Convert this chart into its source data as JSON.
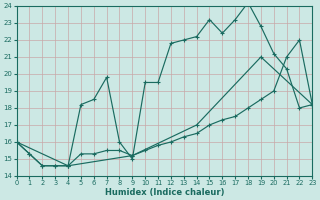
{
  "xlabel": "Humidex (Indice chaleur)",
  "bg_color": "#cce8e4",
  "grid_color": "#b8d8d4",
  "line_color": "#1a6b60",
  "xlim": [
    0,
    23
  ],
  "ylim": [
    14,
    24
  ],
  "xticks": [
    0,
    1,
    2,
    3,
    4,
    5,
    6,
    7,
    8,
    9,
    10,
    11,
    12,
    13,
    14,
    15,
    16,
    17,
    18,
    19,
    20,
    21,
    22,
    23
  ],
  "yticks": [
    14,
    15,
    16,
    17,
    18,
    19,
    20,
    21,
    22,
    23,
    24
  ],
  "line1_x": [
    0,
    1,
    2,
    3,
    4,
    5,
    6,
    7,
    8,
    9,
    10,
    11,
    12,
    13,
    14,
    15,
    16,
    17,
    18,
    19,
    20,
    21,
    22,
    23
  ],
  "line1_y": [
    16.0,
    15.3,
    14.6,
    14.6,
    14.6,
    15.3,
    15.3,
    15.5,
    15.5,
    15.2,
    15.5,
    15.8,
    16.0,
    16.3,
    16.5,
    17.0,
    17.3,
    17.5,
    18.0,
    18.5,
    19.0,
    21.0,
    22.0,
    18.2
  ],
  "line2_x": [
    0,
    1,
    2,
    3,
    4,
    5,
    6,
    7,
    8,
    9,
    10,
    11,
    12,
    13,
    14,
    15,
    16,
    17,
    18,
    19,
    20,
    21,
    22,
    23
  ],
  "line2_y": [
    16.0,
    15.3,
    14.6,
    14.6,
    14.6,
    18.2,
    18.5,
    19.8,
    16.0,
    15.0,
    19.5,
    19.5,
    21.8,
    22.0,
    22.2,
    23.2,
    22.4,
    23.2,
    24.2,
    22.8,
    21.2,
    20.3,
    18.0,
    18.2
  ],
  "line3_x": [
    0,
    4,
    9,
    14,
    19,
    23
  ],
  "line3_y": [
    16.0,
    14.6,
    15.2,
    17.0,
    21.0,
    18.2
  ]
}
